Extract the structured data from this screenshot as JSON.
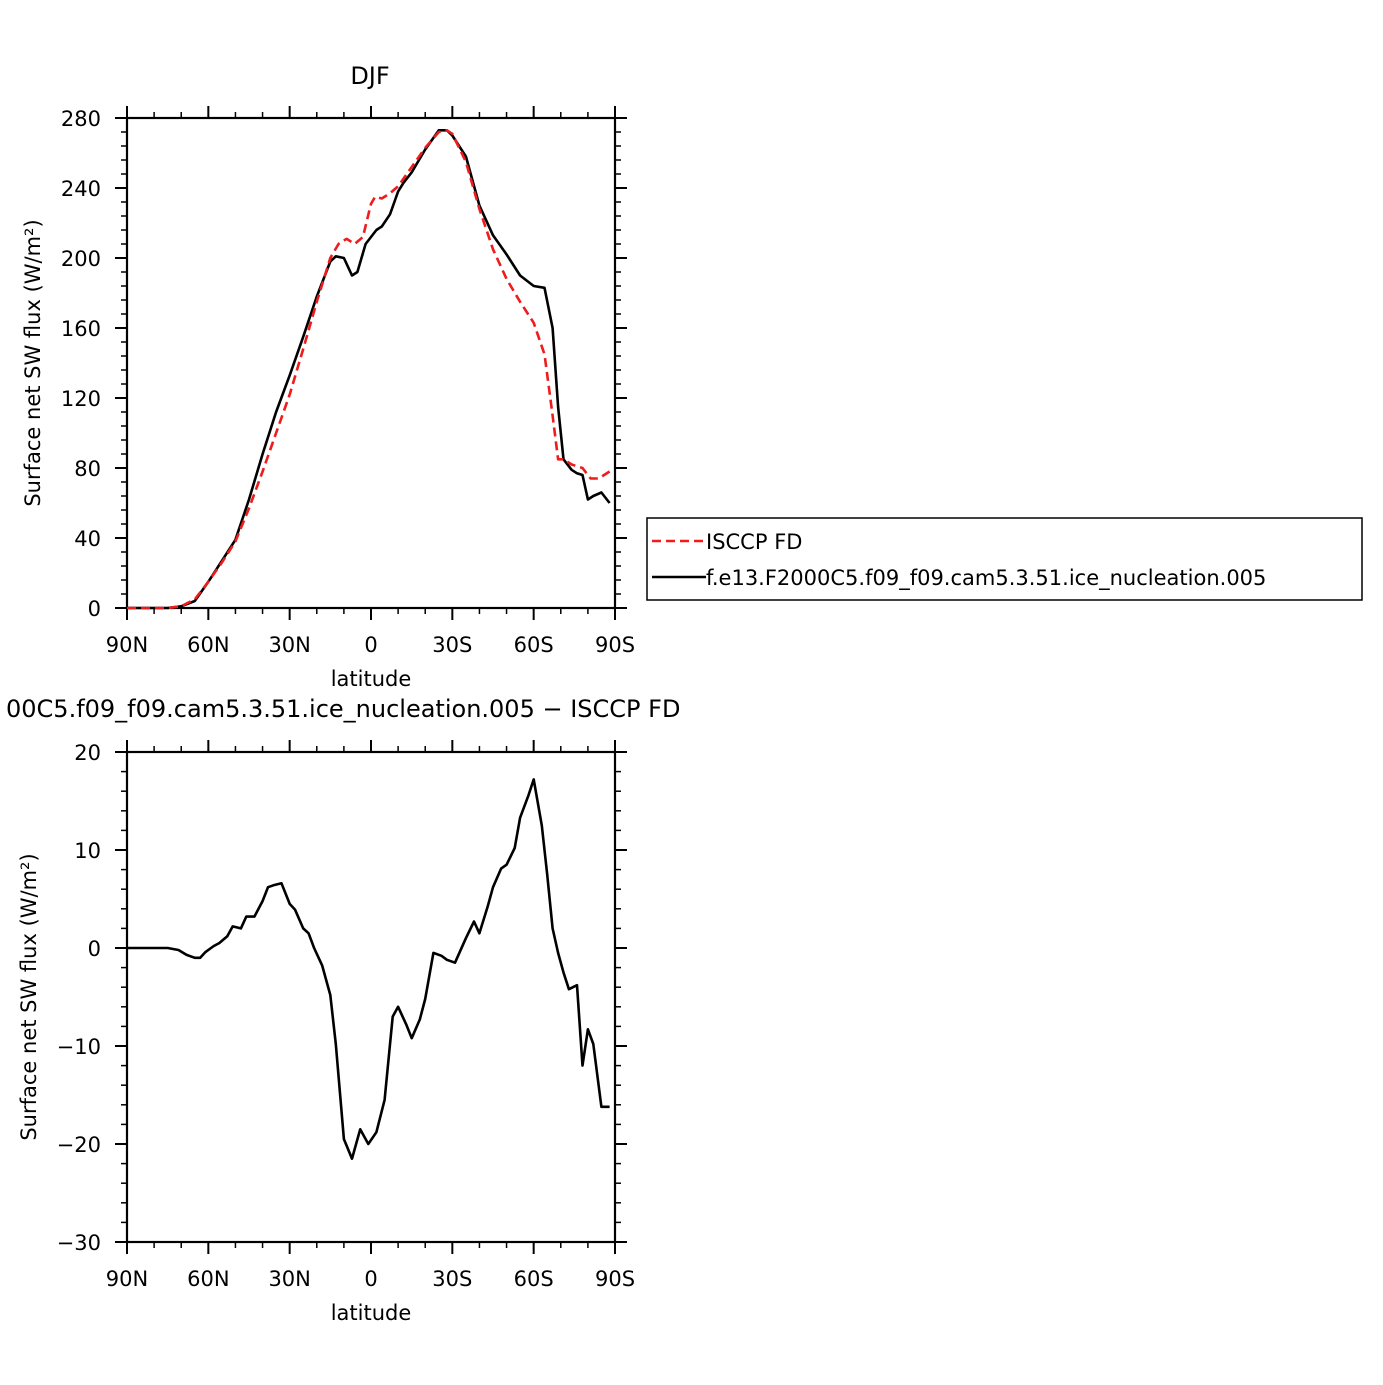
{
  "chart_data": [
    {
      "type": "line",
      "title": "DJF",
      "xlabel": "latitude",
      "ylabel": "Surface net SW flux (W/m²)",
      "xlim": [
        -90,
        90
      ],
      "ylim": [
        0,
        280
      ],
      "x_ticks": [
        -90,
        -60,
        -30,
        0,
        30,
        60,
        90
      ],
      "x_tick_labels": [
        "90N",
        "60N",
        "30N",
        "0",
        "30S",
        "60S",
        "90S"
      ],
      "y_ticks": [
        0,
        40,
        80,
        120,
        160,
        200,
        240,
        280
      ],
      "y_tick_labels": [
        "0",
        "40",
        "80",
        "120",
        "160",
        "200",
        "240",
        "280"
      ],
      "legend": "right",
      "series": [
        {
          "name": "ISCCP FD",
          "color": "#ee1c1c",
          "dash": "dashed",
          "x": [
            -90,
            -85,
            -80,
            -75,
            -70,
            -65,
            -60,
            -55,
            -50,
            -45,
            -40,
            -35,
            -30,
            -25,
            -20,
            -15,
            -12,
            -9,
            -6,
            -3,
            0,
            1.5,
            4,
            7,
            10,
            15,
            20,
            25,
            28,
            30,
            35,
            40,
            45,
            50,
            55,
            60,
            64,
            67,
            69,
            71,
            74,
            78,
            81,
            84,
            88
          ],
          "y": [
            0,
            0,
            0,
            0,
            1,
            5,
            15,
            26,
            38,
            57,
            78,
            100,
            122,
            148,
            175,
            200,
            208,
            211,
            208,
            212,
            231,
            235,
            234,
            237,
            241,
            252,
            263,
            272,
            273,
            271,
            255,
            228,
            205,
            188,
            175,
            163,
            145,
            110,
            85,
            85,
            82,
            80,
            74,
            74,
            78
          ]
        },
        {
          "name": "f.e13.F2000C5.f09_f09.cam5.3.51.ice_nucleation.005",
          "color": "#000000",
          "dash": "solid",
          "x": [
            -90,
            -85,
            -80,
            -75,
            -70,
            -65,
            -60,
            -55,
            -50,
            -45,
            -40,
            -35,
            -30,
            -25,
            -20,
            -15,
            -13,
            -10,
            -7,
            -5,
            -2,
            0,
            2,
            4,
            7,
            10,
            12,
            15,
            20,
            25,
            28,
            30,
            35,
            40,
            45,
            50,
            55,
            60,
            64,
            67,
            69,
            71,
            74,
            76,
            78,
            80,
            82,
            85,
            88
          ],
          "y": [
            0,
            0,
            0,
            0,
            1,
            4,
            15,
            27,
            39,
            62,
            88,
            112,
            133,
            155,
            178,
            198,
            201,
            200,
            190,
            192,
            208,
            212,
            216,
            218,
            225,
            238,
            243,
            249,
            262,
            273,
            273,
            270,
            258,
            230,
            213,
            202,
            190,
            184,
            183,
            160,
            115,
            85,
            79,
            77,
            76,
            62,
            64,
            66,
            60
          ]
        }
      ]
    },
    {
      "type": "line",
      "title": "00C5.f09_f09.cam5.3.51.ice_nucleation.005 − ISCCP FD",
      "xlabel": "latitude",
      "ylabel": "Surface net SW flux (W/m²)",
      "xlim": [
        -90,
        90
      ],
      "ylim": [
        -30,
        20
      ],
      "x_ticks": [
        -90,
        -60,
        -30,
        0,
        30,
        60,
        90
      ],
      "x_tick_labels": [
        "90N",
        "60N",
        "30N",
        "0",
        "30S",
        "60S",
        "90S"
      ],
      "y_ticks": [
        -30,
        -20,
        -10,
        0,
        10,
        20
      ],
      "y_tick_labels": [
        "−30",
        "−20",
        "−10",
        "0",
        "10",
        "20"
      ],
      "series": [
        {
          "color": "#000000",
          "dash": "solid",
          "x": [
            -90,
            -85,
            -80,
            -75,
            -71,
            -68,
            -65,
            -63,
            -61,
            -58,
            -56,
            -53,
            -51,
            -48,
            -46,
            -43,
            -40,
            -38,
            -36,
            -33,
            -30,
            -28,
            -25,
            -23,
            -21,
            -18,
            -15,
            -13,
            -10,
            -7,
            -4,
            -1,
            2,
            5,
            8,
            10,
            13,
            15,
            18,
            20,
            23,
            26,
            28,
            31,
            35,
            38,
            40,
            43,
            45,
            48,
            50,
            53,
            55,
            58,
            60,
            63,
            65,
            67,
            69,
            71,
            73,
            76,
            78,
            80,
            82,
            85,
            88
          ],
          "y": [
            0,
            0,
            0,
            0,
            -0.2,
            -0.7,
            -1,
            -1,
            -0.4,
            0.2,
            0.5,
            1.2,
            2.2,
            2,
            3.2,
            3.2,
            4.8,
            6.2,
            6.4,
            6.6,
            4.5,
            3.9,
            2,
            1.5,
            0,
            -1.8,
            -4.8,
            -9.8,
            -19.5,
            -21.5,
            -18.5,
            -20,
            -18.8,
            -15.5,
            -7,
            -6,
            -7.8,
            -9.2,
            -7.3,
            -5.2,
            -0.5,
            -0.8,
            -1.2,
            -1.5,
            1,
            2.7,
            1.5,
            4.2,
            6.2,
            8.1,
            8.5,
            10.2,
            13.3,
            15.5,
            17.2,
            12.5,
            7.5,
            2,
            -0.5,
            -2.5,
            -4.2,
            -3.8,
            -12,
            -8.3,
            -9.8,
            -16.2,
            -16.2
          ]
        }
      ]
    }
  ]
}
